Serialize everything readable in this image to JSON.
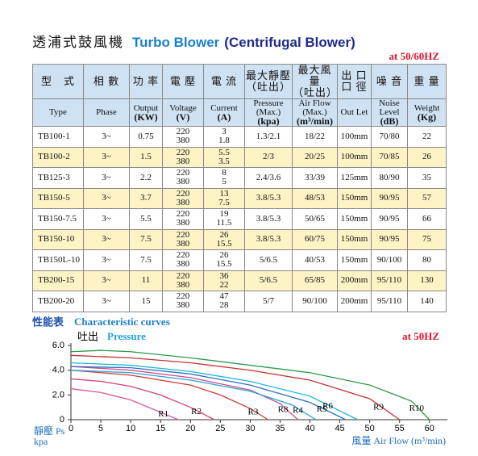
{
  "header": {
    "title_cn": "透浦式鼓風機",
    "title_en": "Turbo Blower",
    "title_sub": "(Centrifugal Blower)",
    "frequency": "at 50/60HZ"
  },
  "table": {
    "header_cn": [
      "型　式",
      "相 數",
      "功 率",
      "電 壓",
      "電 流",
      [
        "最大靜壓",
        "（吐出）"
      ],
      [
        "最大風量",
        "（吐出）"
      ],
      [
        "出 口",
        "口 徑"
      ],
      "噪 音",
      "重 量"
    ],
    "header_en": [
      "Type",
      "Phase",
      [
        "Output",
        "(KW)"
      ],
      [
        "Voltage",
        "(V)"
      ],
      [
        "Current",
        "(A)"
      ],
      [
        "Pressure (Max.)",
        "(kpa)"
      ],
      [
        "Air Flow (Max.)",
        "(m³/min)"
      ],
      "Out Let",
      [
        "Noise Level",
        "(dB)"
      ],
      [
        "Weight",
        "(Kg)"
      ]
    ],
    "rows": [
      [
        "TB100-1",
        "3~",
        "0.75",
        [
          "220",
          "380"
        ],
        [
          "3",
          "1.8"
        ],
        "1.3/2.1",
        "18/22",
        "100mm",
        "70/80",
        "22"
      ],
      [
        "TB100-2",
        "3~",
        "1.5",
        [
          "220",
          "380"
        ],
        [
          "5.5",
          "3.5"
        ],
        "2/3",
        "20/25",
        "100mm",
        "70/85",
        "26"
      ],
      [
        "TB125-3",
        "3~",
        "2.2",
        [
          "220",
          "380"
        ],
        [
          "8",
          "5"
        ],
        "2.4/3.6",
        "33/39",
        "125mm",
        "80/90",
        "35"
      ],
      [
        "TB150-5",
        "3~",
        "3.7",
        [
          "220",
          "380"
        ],
        [
          "13",
          "7.5"
        ],
        "3.8/5.3",
        "48/53",
        "150mm",
        "90/95",
        "57"
      ],
      [
        "TB150-7.5",
        "3~",
        "5.5",
        [
          "220",
          "380"
        ],
        [
          "19",
          "11.5"
        ],
        "3.8/5.3",
        "50/65",
        "150mm",
        "90/95",
        "66"
      ],
      [
        "TB150-10",
        "3~",
        "7.5",
        [
          "220",
          "380"
        ],
        [
          "26",
          "15.5"
        ],
        "3.8/5.3",
        "60/75",
        "150mm",
        "90/95",
        "75"
      ],
      [
        "TB150L-10",
        "3~",
        "7.5",
        [
          "220",
          "380"
        ],
        [
          "26",
          "15.5"
        ],
        "5/6.5",
        "40/53",
        "150mm",
        "90/100",
        "80"
      ],
      [
        "TB200-15",
        "3~",
        "11",
        [
          "220",
          "380"
        ],
        [
          "36",
          "22"
        ],
        "5/6.5",
        "65/85",
        "200mm",
        "95/110",
        "130"
      ],
      [
        "TB200-20",
        "3~",
        "15",
        [
          "220",
          "380"
        ],
        [
          "47",
          "28"
        ],
        "5/7",
        "90/100",
        "200mm",
        "95/110",
        "140"
      ]
    ]
  },
  "chart_data": {
    "type": "line",
    "title_cn": "性能表",
    "title": "Characteristic curves",
    "y_label_cn": "吐出",
    "y_label": "Pressure",
    "annotation": "at 50HZ",
    "y_axis_label": "靜壓 Ps",
    "y_axis_unit": "kpa",
    "x_axis_label": "風量  Air Flow (m³/min)",
    "xlim": [
      0,
      63
    ],
    "ylim": [
      0,
      6.2
    ],
    "xticks": [
      0,
      5,
      10,
      15,
      20,
      25,
      30,
      35,
      40,
      45,
      50,
      55,
      60
    ],
    "yticks": [
      0,
      {
        "value": 2,
        "label": "2.0"
      },
      {
        "value": 4,
        "label": "4.0"
      },
      {
        "value": 6,
        "label": "6.0"
      }
    ],
    "series": [
      {
        "name": "R1",
        "color": "#e0559e",
        "x": [
          0,
          5,
          10,
          15,
          18
        ],
        "values": [
          2.5,
          2.2,
          1.6,
          0.6,
          0
        ]
      },
      {
        "name": "R2",
        "color": "#d8407a",
        "x": [
          0,
          5,
          10,
          15,
          20,
          24
        ],
        "values": [
          3.3,
          3.1,
          2.7,
          2.0,
          1.0,
          0
        ]
      },
      {
        "name": "R3",
        "color": "#d03a3a",
        "x": [
          0,
          10,
          20,
          25,
          30,
          33
        ],
        "values": [
          4.0,
          3.6,
          2.8,
          2.0,
          0.9,
          0
        ]
      },
      {
        "name": "R8",
        "color": "#d04a8a",
        "x": [
          0,
          10,
          20,
          30,
          35,
          38
        ],
        "values": [
          4.3,
          4.0,
          3.4,
          2.4,
          1.3,
          0
        ]
      },
      {
        "name": "R4",
        "color": "#1fa8d8",
        "x": [
          0,
          10,
          20,
          30,
          37,
          41
        ],
        "values": [
          4.0,
          3.8,
          3.2,
          2.3,
          1.2,
          0
        ]
      },
      {
        "name": "R5",
        "color": "#2a6fc0",
        "x": [
          0,
          10,
          20,
          30,
          40,
          46
        ],
        "values": [
          4.3,
          4.2,
          3.7,
          2.8,
          1.4,
          0
        ]
      },
      {
        "name": "R6",
        "color": "#22b4d4",
        "x": [
          0,
          10,
          20,
          30,
          40,
          48
        ],
        "values": [
          4.6,
          4.4,
          3.9,
          3.1,
          1.9,
          0
        ]
      },
      {
        "name": "R9",
        "color": "#c83030",
        "x": [
          0,
          10,
          20,
          30,
          40,
          50,
          55
        ],
        "values": [
          5.2,
          5.0,
          4.6,
          4.0,
          3.2,
          1.7,
          0
        ]
      },
      {
        "name": "R10",
        "color": "#2e9a4a",
        "x": [
          0,
          5,
          10,
          20,
          30,
          40,
          50,
          57,
          60
        ],
        "values": [
          5.5,
          5.6,
          5.5,
          5.0,
          4.4,
          3.8,
          2.8,
          1.5,
          0
        ]
      }
    ]
  }
}
